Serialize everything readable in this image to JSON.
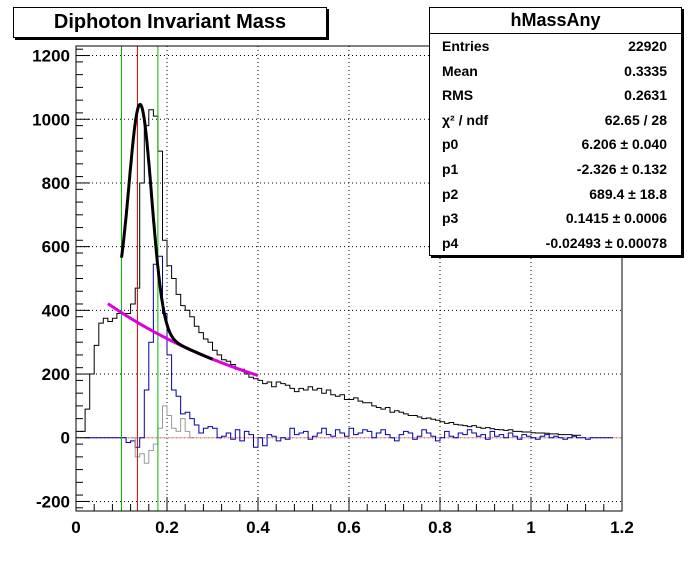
{
  "title": "Diphoton Invariant Mass",
  "stats": {
    "name": "hMassAny",
    "rows": [
      {
        "key": "Entries",
        "value": "22920"
      },
      {
        "key": "Mean",
        "value": "0.3335"
      },
      {
        "key": "RMS",
        "value": "0.2631"
      },
      {
        "key": "χ² / ndf",
        "value": "62.65 / 28"
      },
      {
        "key": "p0",
        "value": "6.206 ± 0.040"
      },
      {
        "key": "p1",
        "value": "-2.326 ± 0.132"
      },
      {
        "key": "p2",
        "value": "689.4 ± 18.8"
      },
      {
        "key": "p3",
        "value": "0.1415 ± 0.0006"
      },
      {
        "key": "p4",
        "value": "-0.02493 ± 0.00078"
      }
    ]
  },
  "colors": {
    "total": "#000000",
    "signal": "#0000aa",
    "subtracted": "#999999",
    "fit": "#000000",
    "background_fit": "#dd00dd",
    "window_line": "#00bb00",
    "peak_line": "#dd0000",
    "frame": "#000000"
  },
  "chart_data": {
    "type": "line",
    "title": "Diphoton Invariant Mass",
    "xlabel": "",
    "ylabel": "",
    "xlim": [
      0,
      1.2
    ],
    "ylim": [
      -230,
      1230
    ],
    "xticks": [
      0,
      0.2,
      0.4,
      0.6,
      0.8,
      1,
      1.2
    ],
    "xtick_labels": [
      "0",
      "0.2",
      "0.4",
      "0.6",
      "0.8",
      "1",
      "1.2"
    ],
    "yticks": [
      -200,
      0,
      200,
      400,
      600,
      800,
      1000,
      1200
    ],
    "ytick_labels": [
      "-200",
      "0",
      "200",
      "400",
      "600",
      "800",
      "1000",
      "1200"
    ],
    "grid": true,
    "bin_width": 0.01,
    "series": [
      {
        "name": "hMassAny",
        "kind": "step",
        "x_start": 0.01,
        "values": [
          20,
          90,
          200,
          290,
          360,
          375,
          365,
          375,
          390,
          390,
          390,
          420,
          470,
          800,
          980,
          1030,
          1010,
          900,
          620,
          540,
          500,
          450,
          415,
          400,
          380,
          350,
          330,
          310,
          300,
          275,
          260,
          245,
          240,
          230,
          215,
          215,
          200,
          190,
          185,
          180,
          170,
          175,
          160,
          175,
          170,
          165,
          155,
          145,
          155,
          150,
          160,
          150,
          155,
          140,
          150,
          135,
          130,
          135,
          120,
          120,
          125,
          115,
          110,
          110,
          100,
          95,
          90,
          95,
          80,
          85,
          80,
          75,
          70,
          70,
          65,
          60,
          62,
          58,
          55,
          50,
          45,
          48,
          42,
          40,
          38,
          35,
          38,
          33,
          30,
          32,
          28,
          26,
          25,
          23,
          25,
          20,
          20,
          18,
          18,
          16,
          15,
          15,
          14,
          12,
          12,
          10,
          10,
          10,
          8,
          8
        ]
      },
      {
        "kind": "step",
        "x_start": 0.02,
        "values": [
          0,
          0,
          0,
          0,
          0,
          0,
          0,
          0,
          0,
          -15,
          -10,
          -30,
          0,
          150,
          300,
          545,
          570,
          390,
          260,
          150,
          130,
          75,
          80,
          60,
          40,
          15,
          30,
          35,
          30,
          0,
          5,
          15,
          -5,
          25,
          -10,
          20,
          10,
          -30,
          0,
          -25,
          10,
          5,
          -10,
          0,
          -5,
          30,
          10,
          15,
          20,
          -5,
          5,
          15,
          30,
          10,
          5,
          25,
          15,
          5,
          30,
          10,
          15,
          25,
          20,
          0,
          15,
          25,
          10,
          0,
          -10,
          10,
          20,
          15,
          -5,
          5,
          25,
          15,
          5,
          -10,
          0,
          20,
          5,
          0,
          15,
          10,
          25,
          15,
          5,
          10,
          -5,
          20,
          5,
          10,
          0,
          15,
          5,
          -5,
          10,
          5,
          0,
          -5,
          5,
          10,
          0,
          5,
          0,
          -5,
          0,
          5,
          0,
          0,
          -5,
          0,
          0,
          0,
          0,
          0
        ]
      },
      {
        "kind": "step",
        "x_start": 0.12,
        "values": [
          0,
          -60,
          -50,
          -80,
          -40,
          -20,
          30,
          100,
          70,
          30,
          20,
          60,
          20,
          0
        ]
      }
    ],
    "fit": {
      "name": "total fit",
      "range": [
        0.1,
        0.3
      ],
      "p0": 6.206,
      "p1": -2.326,
      "p2": 689.4,
      "p3": 0.1415,
      "p4": -0.02493
    },
    "background_fit": {
      "name": "background",
      "range": [
        0.07,
        0.4
      ],
      "p0": 6.206,
      "p1": -2.326
    },
    "vertical_lines": [
      {
        "name": "window-low",
        "x": 0.1,
        "color": "window_line"
      },
      {
        "name": "peak",
        "x": 0.135,
        "color": "peak_line"
      },
      {
        "name": "window-high",
        "x": 0.18,
        "color": "window_line"
      }
    ]
  }
}
